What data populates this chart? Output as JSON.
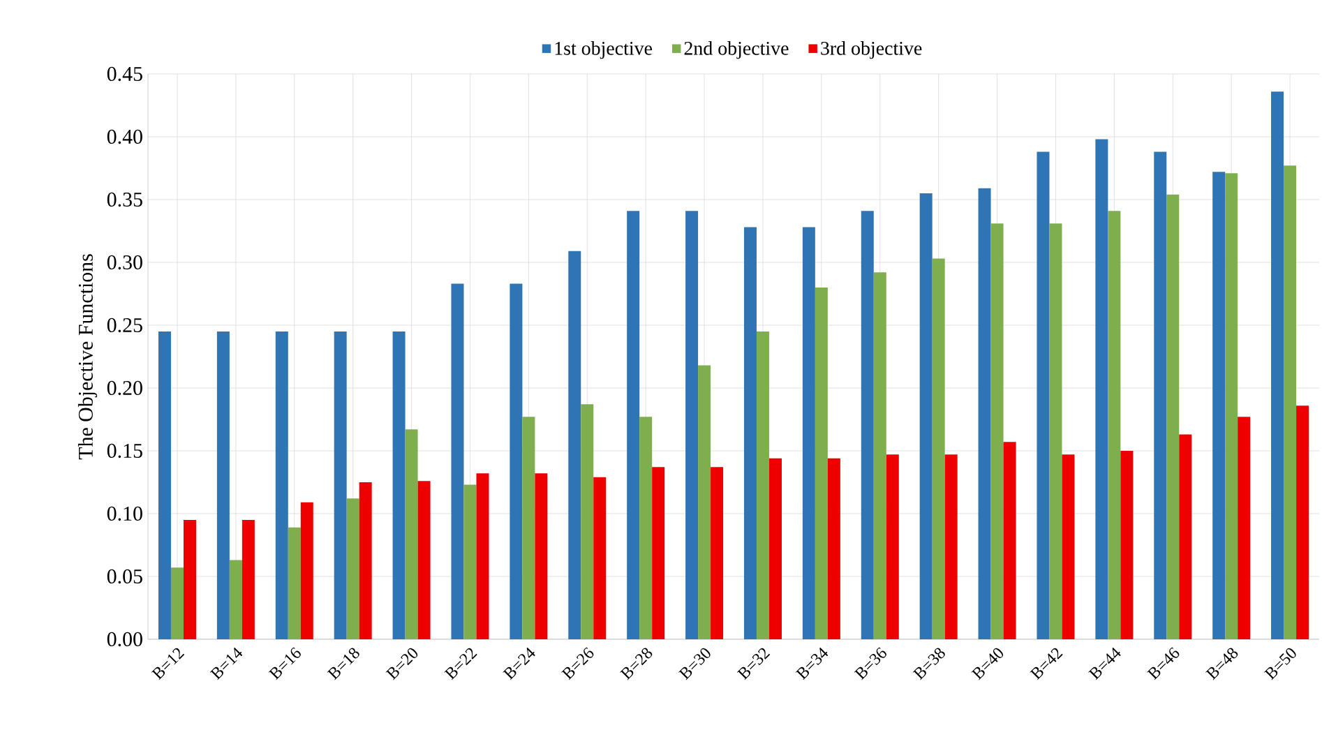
{
  "chart_data": {
    "type": "bar",
    "ylabel": "The Objective Functions",
    "categories": [
      "B=12",
      "B=14",
      "B=16",
      "B=18",
      "B=20",
      "B=22",
      "B=24",
      "B=26",
      "B=28",
      "B=30",
      "B=32",
      "B=34",
      "B=36",
      "B=38",
      "B=40",
      "B=42",
      "B=44",
      "B=46",
      "B=48",
      "B=50"
    ],
    "series": [
      {
        "name": "1st objective",
        "color": "#2e75b6",
        "values": [
          0.245,
          0.245,
          0.245,
          0.245,
          0.245,
          0.283,
          0.283,
          0.309,
          0.341,
          0.341,
          0.328,
          0.328,
          0.341,
          0.355,
          0.359,
          0.388,
          0.398,
          0.388,
          0.372,
          0.436
        ]
      },
      {
        "name": "2nd objective",
        "color": "#7fae4e",
        "values": [
          0.057,
          0.063,
          0.089,
          0.112,
          0.167,
          0.123,
          0.177,
          0.187,
          0.177,
          0.218,
          0.245,
          0.28,
          0.292,
          0.303,
          0.331,
          0.331,
          0.341,
          0.354,
          0.371,
          0.377
        ]
      },
      {
        "name": "3rd objective",
        "color": "#ee0000",
        "values": [
          0.095,
          0.095,
          0.109,
          0.125,
          0.126,
          0.132,
          0.132,
          0.129,
          0.137,
          0.137,
          0.144,
          0.144,
          0.147,
          0.147,
          0.157,
          0.147,
          0.15,
          0.163,
          0.177,
          0.186
        ]
      }
    ],
    "ylim": [
      0,
      0.45
    ],
    "yticks": [
      {
        "value": 0,
        "label": "0.00"
      },
      {
        "value": 0.05,
        "label": "0.05"
      },
      {
        "value": 0.1,
        "label": "0.10"
      },
      {
        "value": 0.15,
        "label": "0.15"
      },
      {
        "value": 0.2,
        "label": "0.20"
      },
      {
        "value": 0.25,
        "label": "0.25"
      },
      {
        "value": 0.3,
        "label": "0.30"
      },
      {
        "value": 0.35,
        "label": "0.35"
      },
      {
        "value": 0.4,
        "label": "0.40"
      },
      {
        "value": 0.45,
        "label": "0.45"
      }
    ],
    "grid": true,
    "legend": "top"
  }
}
